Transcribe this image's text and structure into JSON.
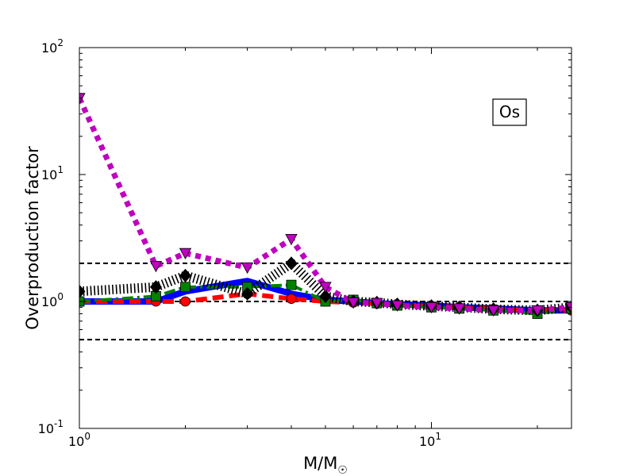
{
  "chart_data": {
    "type": "line",
    "title": "",
    "xlabel": "M/M",
    "xlabel_symbol": "☉",
    "ylabel": "Overproduction factor",
    "xscale": "log",
    "yscale": "log",
    "xlim": [
      1,
      25
    ],
    "ylim": [
      0.1,
      100
    ],
    "grid": false,
    "annotation": "Os",
    "x_ticks": [
      {
        "value": 1,
        "base": "10",
        "exp": "0"
      },
      {
        "value": 10,
        "base": "10",
        "exp": "1"
      }
    ],
    "y_ticks": [
      {
        "value": 0.1,
        "base": "10",
        "exp": "-1"
      },
      {
        "value": 1,
        "base": "10",
        "exp": "0"
      },
      {
        "value": 10,
        "base": "10",
        "exp": "1"
      },
      {
        "value": 100,
        "base": "10",
        "exp": "2"
      }
    ],
    "reference_lines": [
      2.0,
      1.0,
      0.5
    ],
    "series": [
      {
        "color": "#0000ff",
        "line_style": "solid",
        "marker": "none",
        "x": [
          1,
          1.65,
          2,
          3,
          4,
          5,
          6,
          7,
          8,
          10,
          12,
          15,
          20,
          25
        ],
        "y": [
          1.0,
          1.0,
          1.2,
          1.45,
          1.15,
          1.03,
          1.0,
          0.97,
          0.95,
          0.93,
          0.9,
          0.88,
          0.85,
          0.85
        ]
      },
      {
        "color": "#ff0000",
        "line_style": "dashed",
        "marker": "circle",
        "x": [
          1,
          1.65,
          2,
          3,
          4,
          5,
          6,
          7,
          8,
          10,
          12,
          15,
          20,
          25
        ],
        "y": [
          1.0,
          1.0,
          1.0,
          1.15,
          1.05,
          1.0,
          0.98,
          0.96,
          0.94,
          0.92,
          0.9,
          0.87,
          0.85,
          0.85
        ]
      },
      {
        "color": "#008000",
        "line_style": "dashdot",
        "marker": "square",
        "x": [
          1,
          1.65,
          2,
          3,
          4,
          5,
          6,
          7,
          8,
          10,
          12,
          15,
          20,
          25
        ],
        "y": [
          1.0,
          1.1,
          1.3,
          1.3,
          1.35,
          1.0,
          1.03,
          0.97,
          0.93,
          0.9,
          0.88,
          0.85,
          0.8,
          0.88
        ]
      },
      {
        "color": "#000000",
        "line_style": "dotted",
        "marker": "diamond",
        "x": [
          1,
          1.65,
          2,
          3,
          4,
          5,
          6,
          7,
          8,
          10,
          12,
          15,
          20,
          25
        ],
        "y": [
          1.2,
          1.3,
          1.6,
          1.15,
          2.0,
          1.1,
          1.0,
          0.98,
          0.95,
          0.92,
          0.9,
          0.87,
          0.85,
          0.9
        ]
      },
      {
        "color": "#bf00bf",
        "line_style": "dotted",
        "marker": "triangle-down",
        "x": [
          1,
          1.65,
          2,
          3,
          4,
          5,
          6,
          7,
          8,
          10,
          12,
          15,
          20,
          25
        ],
        "y": [
          40,
          1.9,
          2.4,
          1.85,
          3.1,
          1.3,
          0.98,
          0.97,
          0.93,
          0.9,
          0.88,
          0.85,
          0.85,
          0.9
        ]
      }
    ]
  }
}
